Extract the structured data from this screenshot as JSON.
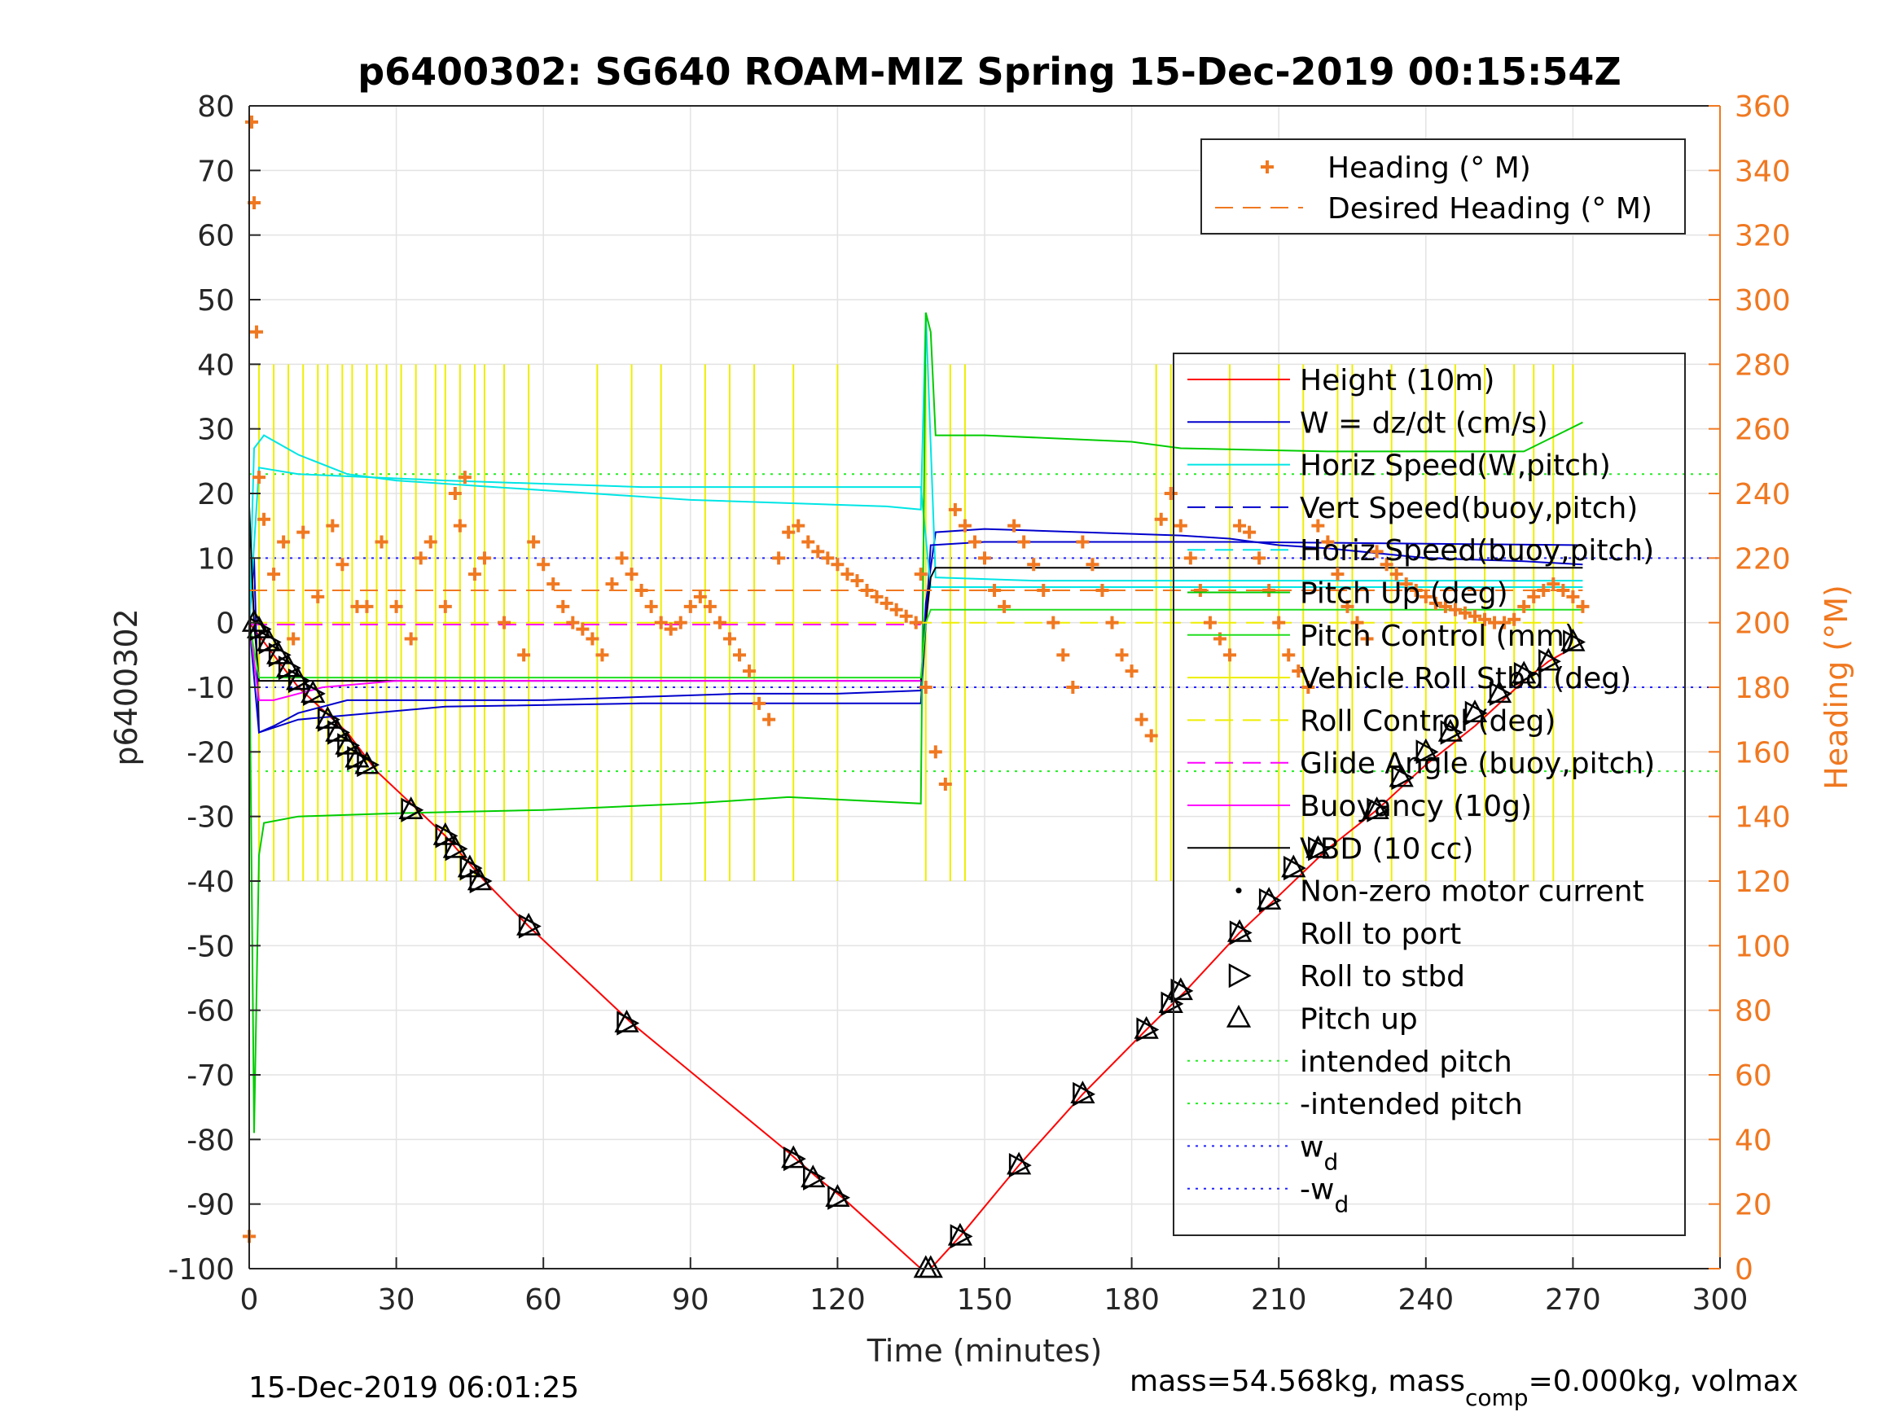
{
  "chart_data": {
    "type": "line",
    "title": "p6400302: SG640 ROAM-MIZ Spring 15-Dec-2019 00:15:54Z",
    "xlabel": "Time (minutes)",
    "ylabel": "p6400302",
    "y2label": "Heading (°M)",
    "xlim": [
      0,
      300
    ],
    "ylim": [
      -100,
      80
    ],
    "y2lim": [
      0,
      360
    ],
    "xticks": [
      0,
      30,
      60,
      90,
      120,
      150,
      180,
      210,
      240,
      270,
      300
    ],
    "yticks": [
      80,
      70,
      60,
      50,
      40,
      30,
      20,
      10,
      0,
      -10,
      -20,
      -30,
      -40,
      -50,
      -60,
      -70,
      -80,
      -90,
      -100
    ],
    "y2ticks": [
      360,
      340,
      320,
      300,
      280,
      260,
      240,
      220,
      200,
      180,
      160,
      140,
      120,
      100,
      80,
      60,
      40,
      20,
      0
    ],
    "grid": true,
    "footer_left": "15-Dec-2019 06:01:25",
    "footer_right_a": "mass=54.568kg, mass",
    "footer_right_sub": "comp",
    "footer_right_b": "=0.000kg, volmax",
    "legend_top": [
      {
        "name": "Heading (° M)",
        "color": "#f07820",
        "marker": "plus",
        "axis": "right"
      },
      {
        "name": "Desired Heading (° M)",
        "color": "#f07820",
        "dash": "dashed",
        "axis": "right"
      }
    ],
    "legend_main": [
      {
        "name": "Height (10m)",
        "color": "#ff0000",
        "style": "solid"
      },
      {
        "name": "W = dz/dt (cm/s)",
        "color": "#0000cc",
        "style": "solid"
      },
      {
        "name": "Horiz Speed(W,pitch)",
        "color": "#00e5e5",
        "style": "solid"
      },
      {
        "name": "Vert Speed(buoy,pitch)",
        "color": "#0000cc",
        "style": "dashed"
      },
      {
        "name": "Horiz Speed(buoy,pitch)",
        "color": "#00e5e5",
        "style": "dashed"
      },
      {
        "name": "Pitch Up (deg)",
        "color": "#00cc00",
        "style": "solid"
      },
      {
        "name": "Pitch Control (mm)",
        "color": "#22dd22",
        "style": "solid"
      },
      {
        "name": "Vehicle Roll Stbd (deg)",
        "color": "#eeee00",
        "style": "solid"
      },
      {
        "name": "Roll Control (deg)",
        "color": "#eeee00",
        "style": "dashed"
      },
      {
        "name": "Glide Angle (buoy,pitch)",
        "color": "#ff00ff",
        "style": "dashed"
      },
      {
        "name": "Buoyancy (10g)",
        "color": "#ff00ff",
        "style": "solid"
      },
      {
        "name": "VBD (10 cc)",
        "color": "#000000",
        "style": "solid"
      },
      {
        "name": "Non-zero motor current",
        "color": "#000000",
        "style": "dot"
      },
      {
        "name": "Roll to port",
        "color": "#000000",
        "style": "none"
      },
      {
        "name": "Roll to stbd",
        "color": "#000000",
        "style": "tri-right"
      },
      {
        "name": "Pitch up",
        "color": "#000000",
        "style": "tri-up"
      },
      {
        "name": "intended pitch",
        "color": "#22ee22",
        "style": "dotted"
      },
      {
        "name": "-intended pitch",
        "color": "#22ee22",
        "style": "dotted"
      },
      {
        "name": "w",
        "sub": "d",
        "color": "#2222ff",
        "style": "dotted"
      },
      {
        "name": "-w",
        "sub": "d",
        "color": "#2222ff",
        "style": "dotted"
      }
    ],
    "series": [
      {
        "name": "Height (10m)",
        "color": "#ff0000",
        "x": [
          0,
          5,
          10,
          20,
          26,
          33,
          40,
          48,
          57,
          78,
          110,
          116,
          121,
          137,
          139,
          145,
          157,
          170,
          183,
          191,
          202,
          209,
          220,
          230,
          240,
          250,
          260,
          265,
          272
        ],
        "y": [
          0,
          -5,
          -10,
          -17,
          -23,
          -28,
          -33,
          -40,
          -47,
          -62,
          -82,
          -86,
          -89,
          -100,
          -100,
          -95,
          -84,
          -73,
          -63,
          -57,
          -48,
          -43,
          -35,
          -29,
          -22,
          -16,
          -9,
          -6,
          -3
        ]
      },
      {
        "name": "W = dz/dt (cm/s)",
        "color": "#0000cc",
        "x": [
          0,
          1,
          2,
          5,
          10,
          20,
          40,
          60,
          80,
          100,
          120,
          137,
          138,
          140,
          150,
          170,
          190,
          200,
          210,
          220,
          240,
          260,
          272
        ],
        "y": [
          0,
          10,
          -17,
          -16,
          -14,
          -12,
          -12,
          -12,
          -11.5,
          -11,
          -11,
          -10.5,
          3,
          14,
          14.5,
          14,
          13.5,
          13,
          12,
          11.5,
          10,
          9.5,
          9
        ]
      },
      {
        "name": "Horiz Speed(W,pitch)",
        "color": "#00e5e5",
        "x": [
          0,
          1,
          3,
          10,
          20,
          30,
          50,
          70,
          90,
          110,
          130,
          137,
          138,
          140,
          160,
          200,
          240,
          272
        ],
        "y": [
          0,
          27,
          29,
          26,
          23,
          22,
          21,
          20,
          19,
          18.5,
          18,
          17.5,
          48,
          7,
          6.5,
          6.5,
          6.5,
          6.5
        ]
      },
      {
        "name": "Vert Speed(buoy,pitch)",
        "color": "#0000cc",
        "x": [
          0,
          2,
          10,
          40,
          80,
          120,
          137,
          139,
          150,
          200,
          272
        ],
        "y": [
          0,
          -17,
          -15,
          -13,
          -12.5,
          -12.5,
          -12.5,
          12,
          12.5,
          12.5,
          12
        ]
      },
      {
        "name": "Horiz Speed(buoy,pitch)",
        "color": "#00e5e5",
        "x": [
          0,
          2,
          10,
          40,
          80,
          120,
          137,
          139,
          200,
          272
        ],
        "y": [
          0,
          24,
          23,
          22,
          21,
          21,
          21,
          5.5,
          5.5,
          5.5
        ]
      },
      {
        "name": "Pitch Up (deg)",
        "color": "#00cc00",
        "x": [
          0,
          1,
          2,
          3,
          10,
          30,
          60,
          90,
          110,
          137,
          138,
          139,
          140,
          150,
          180,
          190,
          220,
          260,
          272
        ],
        "y": [
          0,
          -79,
          -36,
          -31,
          -30,
          -29.5,
          -29,
          -28,
          -27,
          -28,
          48,
          45,
          29,
          29,
          28,
          27,
          26.5,
          26.5,
          31
        ]
      },
      {
        "name": "VBD (10 cc)",
        "color": "#000000",
        "x": [
          0,
          1,
          2,
          5,
          137,
          138,
          139,
          140,
          272
        ],
        "y": [
          18,
          0,
          -9,
          -9,
          -9,
          0,
          7,
          8.5,
          8.5
        ]
      },
      {
        "name": "Buoyancy (10g)",
        "color": "#ff00ff",
        "x": [
          0,
          2,
          5,
          15,
          30,
          137
        ],
        "y": [
          0,
          -12,
          -12,
          -10,
          -9,
          -9
        ]
      },
      {
        "name": "Pitch Control (mm)",
        "color": "#22dd22",
        "x": [
          0,
          2,
          137,
          138,
          139,
          272
        ],
        "y": [
          0,
          -8.5,
          -8.5,
          0,
          2,
          2
        ]
      },
      {
        "name": "Glide Angle (buoy,pitch)",
        "color": "#ff00ff",
        "dash": "dashed",
        "x": [
          0,
          137
        ],
        "y": [
          -0.3,
          -0.3
        ]
      },
      {
        "name": "Roll Control (deg)",
        "color": "#eeee00",
        "dash": "dashed",
        "x": [
          0,
          272
        ],
        "y": [
          0,
          0
        ]
      },
      {
        "name": "Desired Heading (° M)",
        "color": "#f07820",
        "dash": "dashed",
        "axis": "right",
        "x": [
          0,
          272
        ],
        "y": [
          210,
          210
        ]
      }
    ],
    "hlines": [
      {
        "name": "intended pitch",
        "y": 23,
        "color": "#22ee22",
        "style": "dotted"
      },
      {
        "name": "-intended pitch",
        "y": -23,
        "color": "#22ee22",
        "style": "dotted"
      },
      {
        "name": "w_d",
        "y": 10,
        "color": "#2222ff",
        "style": "dotted"
      },
      {
        "name": "-w_d",
        "y": -10,
        "color": "#2222ff",
        "style": "dotted"
      }
    ],
    "roll_spikes": {
      "color": "#eeee00",
      "x": [
        2,
        5,
        8,
        11,
        14,
        16,
        19,
        21,
        24,
        26,
        28,
        31,
        34,
        38,
        40,
        43,
        46,
        48,
        52,
        57,
        71,
        78,
        84,
        93,
        98,
        103,
        111,
        120,
        138,
        143,
        146,
        185,
        188,
        200,
        210,
        215,
        222,
        225,
        233,
        240,
        246,
        252,
        258,
        262,
        266,
        270
      ],
      "low": -40,
      "high": 40
    },
    "heading": {
      "name": "Heading (° M)",
      "color": "#f07820",
      "x": [
        0,
        0.5,
        1,
        1.5,
        2,
        3,
        5,
        7,
        9,
        11,
        14,
        17,
        19,
        22,
        24,
        27,
        30,
        33,
        35,
        37,
        40,
        42,
        43,
        44,
        46,
        48,
        52,
        56,
        58,
        60,
        62,
        64,
        66,
        68,
        70,
        72,
        74,
        76,
        78,
        80,
        82,
        84,
        86,
        88,
        90,
        92,
        94,
        96,
        98,
        100,
        102,
        104,
        106,
        108,
        110,
        112,
        114,
        116,
        118,
        120,
        122,
        124,
        126,
        128,
        130,
        132,
        134,
        136,
        137,
        138,
        140,
        142,
        144,
        146,
        148,
        150,
        152,
        154,
        156,
        158,
        160,
        162,
        164,
        166,
        168,
        170,
        172,
        174,
        176,
        178,
        180,
        182,
        184,
        186,
        188,
        190,
        192,
        194,
        196,
        198,
        200,
        202,
        204,
        206,
        208,
        210,
        212,
        214,
        216,
        218,
        220,
        222,
        224,
        226,
        228,
        230,
        232,
        234,
        236,
        238,
        240,
        242,
        244,
        246,
        248,
        250,
        252,
        254,
        256,
        258,
        260,
        262,
        264,
        266,
        268,
        270,
        272
      ],
      "y": [
        10,
        355,
        330,
        290,
        245,
        232,
        215,
        225,
        195,
        228,
        208,
        230,
        218,
        205,
        205,
        225,
        205,
        195,
        220,
        225,
        205,
        240,
        230,
        245,
        215,
        220,
        200,
        190,
        225,
        218,
        212,
        205,
        200,
        198,
        195,
        190,
        212,
        220,
        215,
        210,
        205,
        200,
        198,
        200,
        205,
        208,
        205,
        200,
        195,
        190,
        185,
        175,
        170,
        220,
        228,
        230,
        225,
        222,
        220,
        218,
        215,
        213,
        210,
        208,
        206,
        204,
        202,
        200,
        215,
        180,
        160,
        150,
        235,
        230,
        225,
        220,
        210,
        205,
        230,
        225,
        218,
        210,
        200,
        190,
        180,
        225,
        218,
        210,
        200,
        190,
        185,
        170,
        165,
        232,
        240,
        230,
        220,
        210,
        200,
        195,
        190,
        230,
        228,
        220,
        210,
        200,
        190,
        185,
        180,
        230,
        225,
        215,
        205,
        200,
        195,
        222,
        218,
        215,
        212,
        210,
        208,
        206,
        205,
        204,
        203,
        202,
        201,
        200,
        200,
        201,
        205,
        208,
        210,
        212,
        210,
        208,
        205
      ]
    },
    "markers": {
      "stbd_points": [
        [
          2,
          -1
        ],
        [
          4,
          -3
        ],
        [
          6,
          -5
        ],
        [
          8,
          -7
        ],
        [
          10,
          -9
        ],
        [
          13,
          -11
        ],
        [
          16,
          -15
        ],
        [
          18,
          -17
        ],
        [
          20,
          -19
        ],
        [
          22,
          -21
        ],
        [
          24,
          -22
        ],
        [
          33,
          -29
        ],
        [
          40,
          -33
        ],
        [
          42,
          -35
        ],
        [
          45,
          -38
        ],
        [
          47,
          -40
        ],
        [
          57,
          -47
        ],
        [
          77,
          -62
        ],
        [
          111,
          -83
        ],
        [
          115,
          -86
        ],
        [
          120,
          -89
        ],
        [
          145,
          -95
        ],
        [
          157,
          -84
        ],
        [
          170,
          -73
        ],
        [
          183,
          -63
        ],
        [
          188,
          -59
        ],
        [
          190,
          -57
        ],
        [
          202,
          -48
        ],
        [
          208,
          -43
        ],
        [
          213,
          -38
        ],
        [
          218,
          -35
        ],
        [
          230,
          -29
        ],
        [
          235,
          -24
        ],
        [
          240,
          -20
        ],
        [
          245,
          -17
        ],
        [
          250,
          -14
        ],
        [
          255,
          -11
        ],
        [
          260,
          -8
        ],
        [
          265,
          -6
        ],
        [
          270,
          -3
        ]
      ],
      "pitch_up_points": [
        [
          1,
          0
        ],
        [
          138,
          -100
        ],
        [
          139,
          -100
        ]
      ]
    }
  }
}
